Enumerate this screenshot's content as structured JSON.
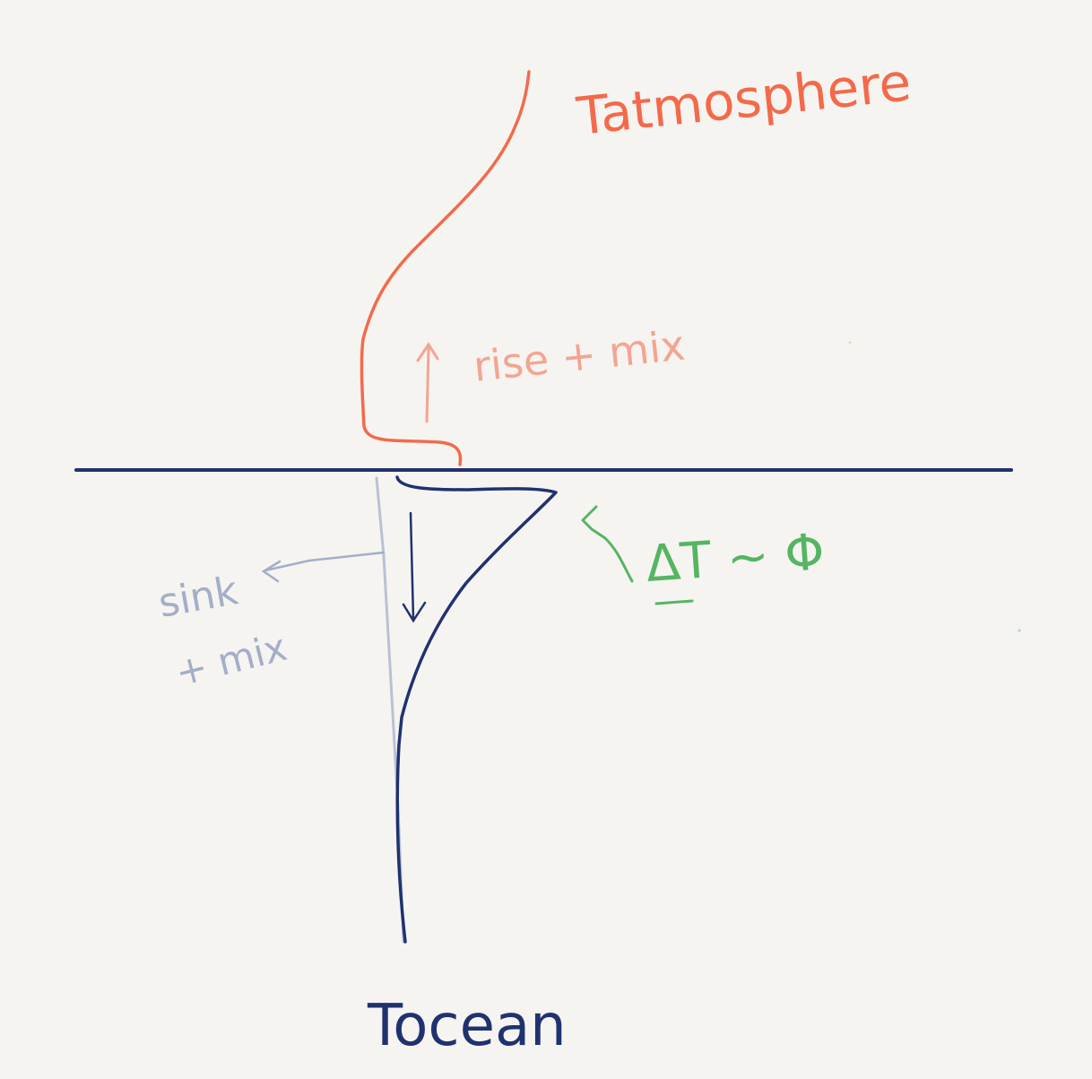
{
  "labels": {
    "atmosphere": "Tatmosphere",
    "ocean": "Tocean",
    "rise": "rise + mix",
    "sink": "sink",
    "sink_mix": "+ mix",
    "delta": "ΔT ~ Φ"
  },
  "colors": {
    "background": "#f6f4f1",
    "atmosphere_curve": "#f36a4a",
    "atmosphere_faint": "#f3a592",
    "ocean_curve": "#1f3270",
    "ocean_faint": "#a3aec8",
    "delta_green": "#55b562"
  }
}
